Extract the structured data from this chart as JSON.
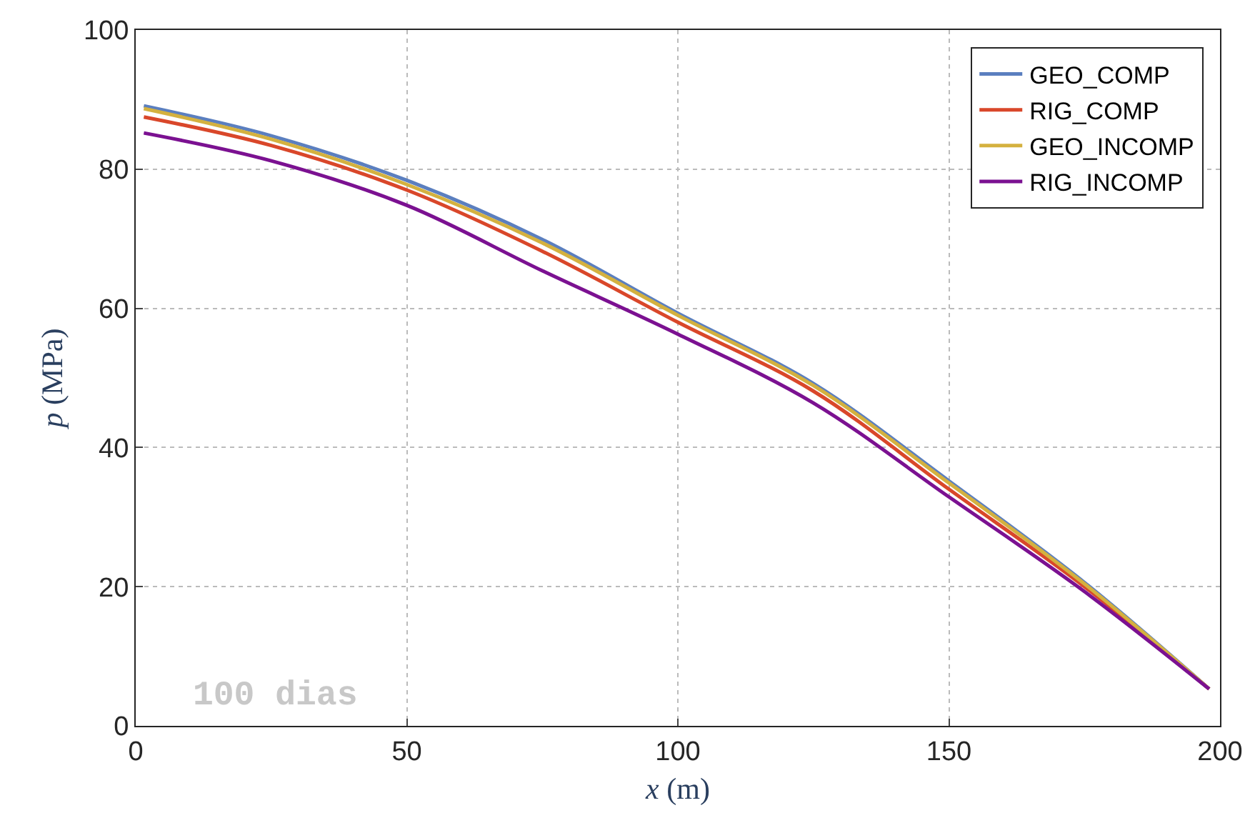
{
  "chart_data": {
    "type": "line",
    "xlabel": "x (m)",
    "ylabel": "p (MPa)",
    "x": [
      1.5,
      25,
      50,
      75,
      100,
      125,
      150,
      175,
      198
    ],
    "series": [
      {
        "name": "GEO_COMP",
        "color": "#5b7fbf",
        "values": [
          89.1,
          84.8,
          78.4,
          69.9,
          59.3,
          49.2,
          35.2,
          20.6,
          5.3
        ]
      },
      {
        "name": "RIG_COMP",
        "color": "#d9472a",
        "values": [
          87.5,
          83.4,
          77.0,
          68.2,
          58.0,
          48.1,
          34.0,
          20.0,
          5.3
        ]
      },
      {
        "name": "GEO_INCOMP",
        "color": "#d4b13f",
        "values": [
          88.7,
          84.3,
          77.8,
          69.4,
          59.0,
          48.9,
          34.9,
          20.4,
          5.3
        ]
      },
      {
        "name": "RIG_INCOMP",
        "color": "#7b1191",
        "values": [
          85.2,
          81.2,
          74.8,
          65.4,
          56.3,
          46.4,
          32.9,
          19.3,
          5.3
        ]
      }
    ],
    "xlim": [
      0,
      200
    ],
    "xticks": [
      0,
      50,
      100,
      150,
      200
    ],
    "ylim": [
      0,
      100
    ],
    "yticks": [
      0,
      20,
      40,
      60,
      80,
      100
    ],
    "grid": true,
    "legend": "top right",
    "marker": "none",
    "line_style": "solid",
    "annotations": [
      "100 dias"
    ]
  }
}
